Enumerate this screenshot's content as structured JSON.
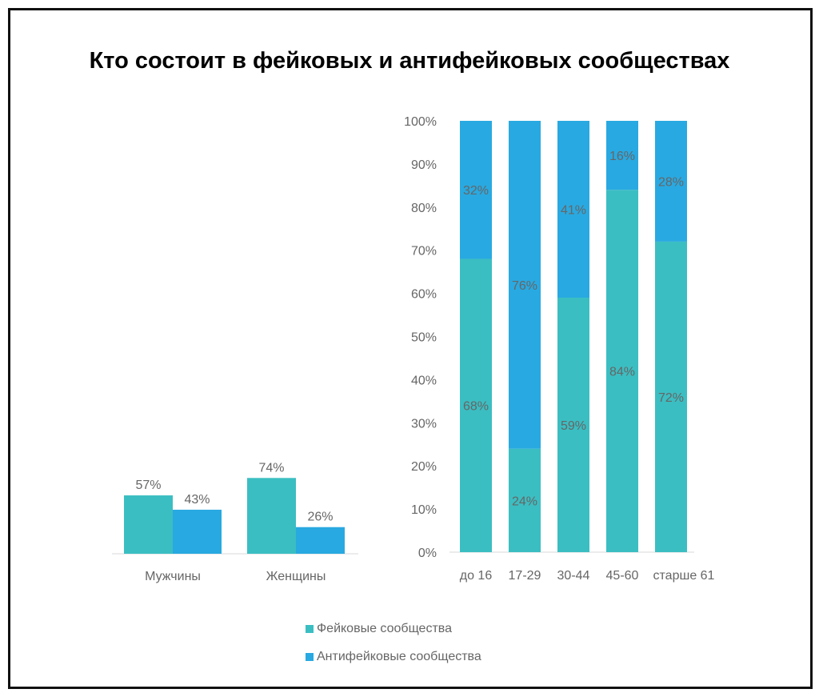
{
  "title": "Кто состоит в фейковых и антифейковых сообществах",
  "colors": {
    "fake": "#3bbec2",
    "antifake": "#29a9e1"
  },
  "legend": [
    "Фейковые сообщества",
    "Антифейковые сообщества"
  ],
  "chart_data": [
    {
      "type": "bar",
      "title": "",
      "categories": [
        "Мужчины",
        "Женщины"
      ],
      "series": [
        {
          "name": "Фейковые сообщества",
          "values": [
            57,
            74
          ]
        },
        {
          "name": "Антифейковые сообщества",
          "values": [
            43,
            26
          ]
        }
      ],
      "ylim": [
        0,
        100
      ]
    },
    {
      "type": "bar",
      "stacked": true,
      "title": "",
      "categories": [
        "до 16",
        "17-29",
        "30-44",
        "45-60",
        "старше 61"
      ],
      "series": [
        {
          "name": "Фейковые сообщества",
          "values": [
            68,
            24,
            59,
            84,
            72
          ]
        },
        {
          "name": "Антифейковые сообщества",
          "values": [
            32,
            76,
            41,
            16,
            28
          ]
        }
      ],
      "ylim": [
        0,
        100
      ],
      "yticks": [
        "0%",
        "10%",
        "20%",
        "30%",
        "40%",
        "50%",
        "60%",
        "70%",
        "80%",
        "90%",
        "100%"
      ]
    }
  ]
}
